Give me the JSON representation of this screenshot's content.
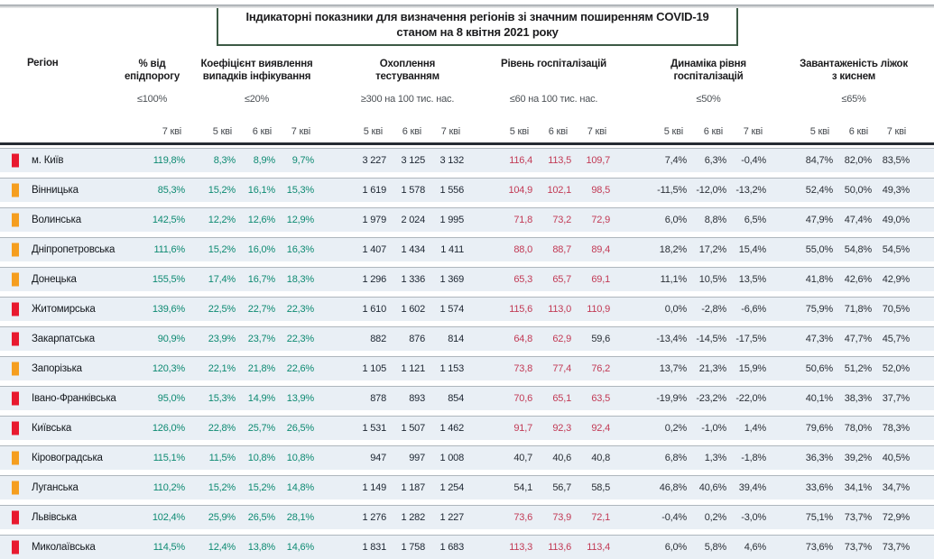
{
  "title": {
    "line1": "Індикаторні показники для визначення регіонів зі значним поширенням COVID-19",
    "line2": "станом на 8 квітня 2021 року"
  },
  "header": {
    "region_label": "Регіон",
    "groups": [
      {
        "title": "% від епідпорогу",
        "threshold": "≤100%",
        "dates": [
          "7 кві"
        ]
      },
      {
        "title": "Коефіцієнт виявлення випадків інфікування",
        "threshold": "≤20%",
        "dates": [
          "5 кві",
          "6 кві",
          "7 кві"
        ]
      },
      {
        "title": "Охоплення тестуванням",
        "threshold": "≥300 на 100 тис. нас.",
        "dates": [
          "5 кві",
          "6 кві",
          "7 кві"
        ]
      },
      {
        "title": "Рівень госпіталізацій",
        "threshold": "≤60 на 100 тис. нас.",
        "dates": [
          "5 кві",
          "6 кві",
          "7 кві"
        ]
      },
      {
        "title": "Динаміка рівня госпіталізацій",
        "threshold": "≤50%",
        "dates": [
          "5 кві",
          "6 кві",
          "7 кві"
        ]
      },
      {
        "title": "Завантаженість ліжок з киснем",
        "threshold": "≤65%",
        "dates": [
          "5 кві",
          "6 кві",
          "7 кві"
        ]
      }
    ]
  },
  "colors": {
    "red_marker": "#e8192f",
    "orange_marker": "#f59e1f",
    "teal_value": "#0d8a72",
    "navy_value": "#1c2531",
    "red_value": "#c23a55",
    "dark_value": "#2a2f36",
    "band_bg": "#e9eff5",
    "title_border": "#3c5a45",
    "separator": "#262b33"
  },
  "rows": [
    {
      "region": "м. Київ",
      "marker": "red_marker",
      "epid": "119,8%",
      "coef": [
        "8,3%",
        "8,9%",
        "9,7%"
      ],
      "test": [
        "3 227",
        "3 125",
        "3 132"
      ],
      "hosp": [
        "116,4",
        "113,5",
        "109,7"
      ],
      "hosp_alert": [
        true,
        true,
        true
      ],
      "dyn": [
        "7,4%",
        "6,3%",
        "-0,4%"
      ],
      "beds": [
        "84,7%",
        "82,0%",
        "83,5%"
      ]
    },
    {
      "region": "Вінницька",
      "marker": "orange_marker",
      "epid": "85,3%",
      "coef": [
        "15,2%",
        "16,1%",
        "15,3%"
      ],
      "test": [
        "1 619",
        "1 578",
        "1 556"
      ],
      "hosp": [
        "104,9",
        "102,1",
        "98,5"
      ],
      "hosp_alert": [
        true,
        true,
        true
      ],
      "dyn": [
        "-11,5%",
        "-12,0%",
        "-13,2%"
      ],
      "beds": [
        "52,4%",
        "50,0%",
        "49,3%"
      ]
    },
    {
      "region": "Волинська",
      "marker": "orange_marker",
      "epid": "142,5%",
      "coef": [
        "12,2%",
        "12,6%",
        "12,9%"
      ],
      "test": [
        "1 979",
        "2 024",
        "1 995"
      ],
      "hosp": [
        "71,8",
        "73,2",
        "72,9"
      ],
      "hosp_alert": [
        true,
        true,
        true
      ],
      "dyn": [
        "6,0%",
        "8,8%",
        "6,5%"
      ],
      "beds": [
        "47,9%",
        "47,4%",
        "49,0%"
      ]
    },
    {
      "region": "Дніпропетровська",
      "marker": "orange_marker",
      "epid": "111,6%",
      "coef": [
        "15,2%",
        "16,0%",
        "16,3%"
      ],
      "test": [
        "1 407",
        "1 434",
        "1 411"
      ],
      "hosp": [
        "88,0",
        "88,7",
        "89,4"
      ],
      "hosp_alert": [
        true,
        true,
        true
      ],
      "dyn": [
        "18,2%",
        "17,2%",
        "15,4%"
      ],
      "beds": [
        "55,0%",
        "54,8%",
        "54,5%"
      ]
    },
    {
      "region": "Донецька",
      "marker": "orange_marker",
      "epid": "155,5%",
      "coef": [
        "17,4%",
        "16,7%",
        "18,3%"
      ],
      "test": [
        "1 296",
        "1 336",
        "1 369"
      ],
      "hosp": [
        "65,3",
        "65,7",
        "69,1"
      ],
      "hosp_alert": [
        true,
        true,
        true
      ],
      "dyn": [
        "11,1%",
        "10,5%",
        "13,5%"
      ],
      "beds": [
        "41,8%",
        "42,6%",
        "42,9%"
      ]
    },
    {
      "region": "Житомирська",
      "marker": "red_marker",
      "epid": "139,6%",
      "coef": [
        "22,5%",
        "22,7%",
        "22,3%"
      ],
      "test": [
        "1 610",
        "1 602",
        "1 574"
      ],
      "hosp": [
        "115,6",
        "113,0",
        "110,9"
      ],
      "hosp_alert": [
        true,
        true,
        true
      ],
      "dyn": [
        "0,0%",
        "-2,8%",
        "-6,6%"
      ],
      "beds": [
        "75,9%",
        "71,8%",
        "70,5%"
      ]
    },
    {
      "region": "Закарпатська",
      "marker": "red_marker",
      "epid": "90,9%",
      "coef": [
        "23,9%",
        "23,7%",
        "22,3%"
      ],
      "test": [
        "882",
        "876",
        "814"
      ],
      "hosp": [
        "64,8",
        "62,9",
        "59,6"
      ],
      "hosp_alert": [
        true,
        true,
        false
      ],
      "dyn": [
        "-13,4%",
        "-14,5%",
        "-17,5%"
      ],
      "beds": [
        "47,3%",
        "47,7%",
        "45,7%"
      ]
    },
    {
      "region": "Запорізька",
      "marker": "orange_marker",
      "epid": "120,3%",
      "coef": [
        "22,1%",
        "21,8%",
        "22,6%"
      ],
      "test": [
        "1 105",
        "1 121",
        "1 153"
      ],
      "hosp": [
        "73,8",
        "77,4",
        "76,2"
      ],
      "hosp_alert": [
        true,
        true,
        true
      ],
      "dyn": [
        "13,7%",
        "21,3%",
        "15,9%"
      ],
      "beds": [
        "50,6%",
        "51,2%",
        "52,0%"
      ]
    },
    {
      "region": "Івано-Франківська",
      "marker": "red_marker",
      "epid": "95,0%",
      "coef": [
        "15,3%",
        "14,9%",
        "13,9%"
      ],
      "test": [
        "878",
        "893",
        "854"
      ],
      "hosp": [
        "70,6",
        "65,1",
        "63,5"
      ],
      "hosp_alert": [
        true,
        true,
        true
      ],
      "dyn": [
        "-19,9%",
        "-23,2%",
        "-22,0%"
      ],
      "beds": [
        "40,1%",
        "38,3%",
        "37,7%"
      ]
    },
    {
      "region": "Київська",
      "marker": "red_marker",
      "epid": "126,0%",
      "coef": [
        "22,8%",
        "25,7%",
        "26,5%"
      ],
      "test": [
        "1 531",
        "1 507",
        "1 462"
      ],
      "hosp": [
        "91,7",
        "92,3",
        "92,4"
      ],
      "hosp_alert": [
        true,
        true,
        true
      ],
      "dyn": [
        "0,2%",
        "-1,0%",
        "1,4%"
      ],
      "beds": [
        "79,6%",
        "78,0%",
        "78,3%"
      ]
    },
    {
      "region": "Кіровоградська",
      "marker": "orange_marker",
      "epid": "115,1%",
      "coef": [
        "11,5%",
        "10,8%",
        "10,8%"
      ],
      "test": [
        "947",
        "997",
        "1 008"
      ],
      "hosp": [
        "40,7",
        "40,6",
        "40,8"
      ],
      "hosp_alert": [
        false,
        false,
        false
      ],
      "dyn": [
        "6,8%",
        "1,3%",
        "-1,8%"
      ],
      "beds": [
        "36,3%",
        "39,2%",
        "40,5%"
      ]
    },
    {
      "region": "Луганська",
      "marker": "orange_marker",
      "epid": "110,2%",
      "coef": [
        "15,2%",
        "15,2%",
        "14,8%"
      ],
      "test": [
        "1 149",
        "1 187",
        "1 254"
      ],
      "hosp": [
        "54,1",
        "56,7",
        "58,5"
      ],
      "hosp_alert": [
        false,
        false,
        false
      ],
      "dyn": [
        "46,8%",
        "40,6%",
        "39,4%"
      ],
      "beds": [
        "33,6%",
        "34,1%",
        "34,7%"
      ]
    },
    {
      "region": "Львівська",
      "marker": "red_marker",
      "epid": "102,4%",
      "coef": [
        "25,9%",
        "26,5%",
        "28,1%"
      ],
      "test": [
        "1 276",
        "1 282",
        "1 227"
      ],
      "hosp": [
        "73,6",
        "73,9",
        "72,1"
      ],
      "hosp_alert": [
        true,
        true,
        true
      ],
      "dyn": [
        "-0,4%",
        "0,2%",
        "-3,0%"
      ],
      "beds": [
        "75,1%",
        "73,7%",
        "72,9%"
      ]
    },
    {
      "region": "Миколаївська",
      "marker": "red_marker",
      "epid": "114,5%",
      "coef": [
        "12,4%",
        "13,8%",
        "14,6%"
      ],
      "test": [
        "1 831",
        "1 758",
        "1 683"
      ],
      "hosp": [
        "113,3",
        "113,6",
        "113,4"
      ],
      "hosp_alert": [
        true,
        true,
        true
      ],
      "dyn": [
        "6,0%",
        "5,8%",
        "4,6%"
      ],
      "beds": [
        "73,6%",
        "73,7%",
        "73,7%"
      ]
    }
  ]
}
